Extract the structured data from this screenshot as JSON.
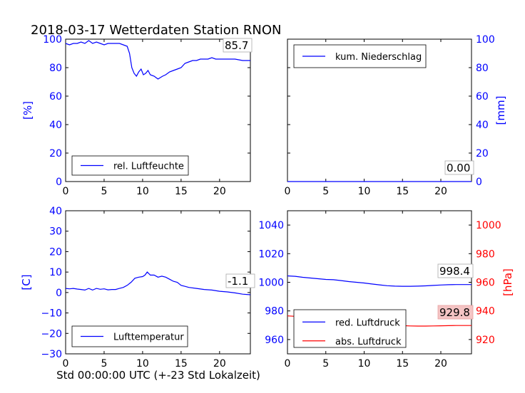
{
  "title": "2018-03-17 Wetterdaten Station RNON",
  "xlabel": "Std 00:00:00 UTC (+-23 Std Lokalzeit)",
  "colors": {
    "blue": "#0000ff",
    "red": "#ff0000",
    "readout_red_bg": "#f4c4c4"
  },
  "chart_data": [
    {
      "type": "line",
      "panel": "top-left",
      "ylabel": "[%]",
      "xlim": [
        0,
        24
      ],
      "ylim": [
        0,
        100
      ],
      "xticks": [
        0,
        5,
        10,
        15,
        20
      ],
      "yticks": [
        0,
        20,
        40,
        60,
        80,
        100
      ],
      "grid": false,
      "legend": {
        "placement": "lower-left",
        "entries": [
          "rel. Luftfeuchte"
        ]
      },
      "readout": "85.7",
      "series": [
        {
          "name": "rel. Luftfeuchte",
          "color": "#0000ff",
          "x": [
            0,
            0.5,
            1,
            1.5,
            2,
            2.5,
            3,
            3.5,
            4,
            4.5,
            5,
            5.5,
            6,
            6.5,
            7,
            7.5,
            8,
            8.3,
            8.6,
            8.9,
            9.2,
            9.5,
            9.8,
            10.1,
            10.4,
            10.7,
            11,
            11.5,
            12,
            12.3,
            12.6,
            13,
            13.5,
            14,
            14.5,
            15,
            15.5,
            16,
            16.5,
            17,
            17.5,
            18,
            18.5,
            19,
            19.5,
            20,
            20.5,
            21,
            22,
            23,
            24
          ],
          "y": [
            97,
            96,
            97,
            97,
            98,
            97,
            99,
            97,
            98,
            97,
            96,
            97,
            97,
            97,
            97,
            96,
            95,
            90,
            80,
            76,
            74,
            77,
            79,
            75,
            76,
            78,
            75,
            74,
            72,
            73,
            74,
            75,
            77,
            78,
            79,
            80,
            83,
            84,
            85,
            85,
            86,
            86,
            86,
            87,
            86,
            86,
            86,
            86,
            86,
            85,
            85
          ]
        }
      ]
    },
    {
      "type": "line",
      "panel": "top-right",
      "ylabel": "[mm]",
      "xlim": [
        0,
        24
      ],
      "ylim": [
        0,
        100
      ],
      "xticks": [
        0,
        5,
        10,
        15,
        20
      ],
      "yticks": [
        0,
        20,
        40,
        60,
        80,
        100
      ],
      "yaxis_side": "right",
      "grid": false,
      "legend": {
        "placement": "upper-left",
        "entries": [
          "kum. Niederschlag"
        ]
      },
      "readout": "0.00",
      "series": [
        {
          "name": "kum. Niederschlag",
          "color": "#0000ff",
          "x": [
            0,
            24
          ],
          "y": [
            0,
            0
          ]
        }
      ]
    },
    {
      "type": "line",
      "panel": "bottom-left",
      "ylabel": "[C]",
      "xlim": [
        0,
        24
      ],
      "ylim": [
        -30,
        40
      ],
      "xticks": [
        0,
        5,
        10,
        15,
        20
      ],
      "yticks": [
        -30,
        -20,
        -10,
        0,
        10,
        20,
        30,
        40
      ],
      "grid": false,
      "legend": {
        "placement": "lower-left",
        "entries": [
          "Lufttemperatur"
        ]
      },
      "readout": "-1.1",
      "series": [
        {
          "name": "Lufttemperatur",
          "color": "#0000ff",
          "x": [
            0,
            0.5,
            1,
            1.5,
            2,
            2.5,
            3,
            3.5,
            4,
            4.5,
            5,
            5.5,
            6,
            6.5,
            7,
            7.5,
            8,
            8.5,
            9,
            9.5,
            10,
            10.3,
            10.6,
            11,
            11.5,
            12,
            12.5,
            13,
            13.5,
            14,
            14.5,
            15,
            15.5,
            16,
            17,
            18,
            19,
            20,
            21,
            22,
            23,
            24
          ],
          "y": [
            2,
            1.8,
            2,
            1.7,
            1.5,
            1.2,
            2,
            1.2,
            2,
            1.6,
            1.8,
            1.3,
            1.5,
            1.5,
            2,
            2.5,
            3.5,
            5,
            7,
            7.5,
            7.8,
            8.5,
            10,
            8.5,
            8.5,
            7.5,
            8,
            7.5,
            6.5,
            5.5,
            5,
            3.5,
            3,
            2.5,
            2,
            1.5,
            1.2,
            0.6,
            0.3,
            -0.2,
            -0.8,
            -1.1
          ]
        }
      ]
    },
    {
      "type": "line",
      "panel": "bottom-right",
      "ylabel": "[hPa]",
      "xlim": [
        0,
        24
      ],
      "ylim": [
        950,
        1050
      ],
      "yticks": [
        960,
        980,
        1000,
        1020,
        1040
      ],
      "ylim_right": [
        910,
        1010
      ],
      "yticks_right": [
        920,
        940,
        960,
        980,
        1000
      ],
      "xticks": [
        0,
        5,
        10,
        15,
        20
      ],
      "grid": false,
      "legend": {
        "placement": "lower-left",
        "entries": [
          "red. Luftdruck",
          "abs. Luftdruck"
        ]
      },
      "readouts": [
        "998.4",
        "929.8"
      ],
      "series": [
        {
          "name": "red. Luftdruck",
          "color": "#0000ff",
          "axis": "left",
          "x": [
            0,
            1,
            2,
            3,
            4,
            5,
            6,
            7,
            8,
            9,
            10,
            11,
            12,
            13,
            14,
            15,
            16,
            17,
            18,
            19,
            20,
            21,
            22,
            23,
            24
          ],
          "y": [
            1004.5,
            1004.2,
            1003.5,
            1003,
            1002.5,
            1002,
            1001.8,
            1001.2,
            1000.5,
            1000,
            999.5,
            998.8,
            998.2,
            997.6,
            997.3,
            997.2,
            997.2,
            997.3,
            997.5,
            997.8,
            998.1,
            998.3,
            998.4,
            998.4,
            998.4
          ]
        },
        {
          "name": "abs. Luftdruck",
          "color": "#ff0000",
          "axis": "right",
          "x": [
            0,
            1,
            2,
            3,
            4,
            5,
            6,
            7,
            8,
            9,
            10,
            11,
            12,
            13,
            14,
            15,
            16,
            17,
            18,
            19,
            20,
            21,
            22,
            23,
            24
          ],
          "y": [
            936.5,
            936.2,
            935.6,
            935,
            934.4,
            933.8,
            933.3,
            932.8,
            932.2,
            931.8,
            931.4,
            930.9,
            930.5,
            930.2,
            929.9,
            929.7,
            929.5,
            929.4,
            929.4,
            929.5,
            929.6,
            929.7,
            929.8,
            929.8,
            929.8
          ]
        }
      ]
    }
  ]
}
